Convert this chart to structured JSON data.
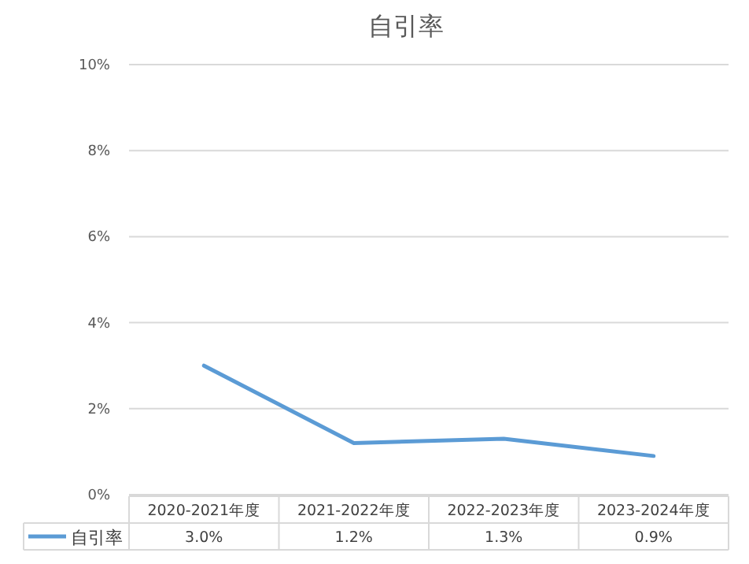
{
  "chart_data": {
    "type": "line",
    "title": "自引率",
    "categories": [
      "2020-2021年度",
      "2021-2022年度",
      "2022-2023年度",
      "2023-2024年度"
    ],
    "series": [
      {
        "name": "自引率",
        "color": "#5b9bd5",
        "values": [
          3.0,
          1.2,
          1.3,
          0.9
        ],
        "value_labels": [
          "3.0%",
          "1.2%",
          "1.3%",
          "0.9%"
        ]
      }
    ],
    "ylim": [
      0,
      10
    ],
    "yticks": [
      {
        "value": 0,
        "label": "0%"
      },
      {
        "value": 2,
        "label": "2%"
      },
      {
        "value": 4,
        "label": "4%"
      },
      {
        "value": 6,
        "label": "6%"
      },
      {
        "value": 8,
        "label": "8%"
      },
      {
        "value": 10,
        "label": "10%"
      }
    ],
    "grid": "y",
    "legend": "bottom",
    "marker": "none",
    "line_style": "solid"
  }
}
